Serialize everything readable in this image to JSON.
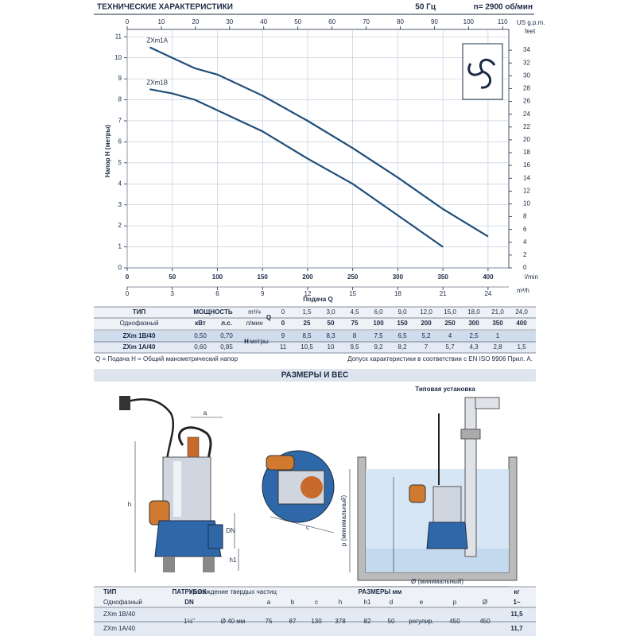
{
  "header": {
    "title": "ТЕХНИЧЕСКИЕ ХАРАКТЕРИСТИКИ",
    "freq": "50 Гц",
    "speed": "n= 2900 об/мин"
  },
  "chart_data": {
    "type": "line",
    "y_label": "Напор H (метры)",
    "x_label": "Подача Q",
    "x_unit": "l/min",
    "x2_unit": "US g.p.m.",
    "x3_unit": "m³/h",
    "y2_unit": "feet",
    "x": [
      25,
      50,
      75,
      100,
      150,
      200,
      250,
      300,
      350,
      400
    ],
    "series": [
      {
        "name": "ZXm1A",
        "color": "#1f4e79",
        "values": [
          10.5,
          10,
          9.5,
          9.2,
          8.2,
          7,
          5.7,
          4.3,
          2.8,
          1.5
        ]
      },
      {
        "name": "ZXm1B",
        "color": "#1f4e79",
        "values": [
          8.5,
          8.3,
          8,
          7.5,
          6.5,
          5.2,
          4,
          2.5,
          1,
          null
        ]
      }
    ],
    "xlim": [
      0,
      423
    ],
    "xticks": [
      0,
      50,
      100,
      150,
      200,
      250,
      300,
      350,
      400
    ],
    "x2lim": [
      0,
      111.8
    ],
    "x2ticks": [
      0,
      10,
      20,
      30,
      40,
      50,
      60,
      70,
      80,
      90,
      100,
      110
    ],
    "x3lim": [
      0,
      25.38
    ],
    "x3ticks": [
      0,
      3,
      6,
      9,
      12,
      15,
      18,
      21,
      24
    ],
    "ylim": [
      0,
      11.35
    ],
    "yticks": [
      0,
      1,
      2,
      3,
      4,
      5,
      6,
      7,
      8,
      9,
      10,
      11
    ],
    "y2lim": [
      0,
      37.24
    ],
    "y2ticks": [
      0,
      2,
      4,
      6,
      8,
      10,
      12,
      14,
      16,
      18,
      20,
      22,
      24,
      26,
      28,
      30,
      32,
      34
    ],
    "grid": true
  },
  "perf_table": {
    "type_header": "ТИП",
    "power_header": "МОЩНОСТЬ",
    "phase": "Однофазный",
    "kw": "кВт",
    "hp": "л.с.",
    "q_label": "Q",
    "h_label": "H",
    "h_unit": "метры",
    "q_units": [
      "m³/ч",
      "л/мин"
    ],
    "q_m3h": [
      "0",
      "1,5",
      "3,0",
      "4,5",
      "6,0",
      "9,0",
      "12,0",
      "15,0",
      "18,0",
      "21,0",
      "24,0"
    ],
    "q_lmin": [
      "0",
      "25",
      "50",
      "75",
      "100",
      "150",
      "200",
      "250",
      "300",
      "350",
      "400"
    ],
    "rows": [
      {
        "model": "ZXm 1B/40",
        "kw": "0,50",
        "hp": "0,70",
        "h": [
          "9",
          "8,5",
          "8,3",
          "8",
          "7,5",
          "6,5",
          "5,2",
          "4",
          "2,5",
          "1"
        ]
      },
      {
        "model": "ZXm 1A/40",
        "kw": "0,60",
        "hp": "0,85",
        "h": [
          "11",
          "10,5",
          "10",
          "9,5",
          "9,2",
          "8,2",
          "7",
          "5,7",
          "4,3",
          "2,8",
          "1,5"
        ]
      }
    ]
  },
  "notes": [
    "Q = Подача  H = Общий манометрический напор",
    "Допуск характеристики в соответствии с EN ISO 9906 Прил. А."
  ],
  "dimensions": {
    "section_title": "РАЗМЕРЫ И ВЕС",
    "install_label": "Типовая установка",
    "labels": [
      "h",
      "a",
      "DN",
      "h1",
      "c",
      "p (минимальный)",
      "Ø (минимальный)"
    ]
  },
  "dim_table": {
    "type_header": "ТИП",
    "inlet_header": "ПАТРУБОК",
    "solids_header": "прохождение твердых частиц",
    "dims_header": "РАЗМЕРЫ мм",
    "kg_header": "кг",
    "phase": "Однофазный",
    "dn": "DN",
    "phase_kg": "1~",
    "dim_cols": [
      "a",
      "b",
      "c",
      "h",
      "h1",
      "d",
      "e",
      "p",
      "Ø"
    ],
    "inlet": "1½\"",
    "solids": "Ø 40 мм",
    "dims": [
      "75",
      "87",
      "130",
      "378",
      "82",
      "50",
      "регулир.",
      "450",
      "450"
    ],
    "rows": [
      {
        "model": "ZXm 1B/40",
        "kg": "11,5"
      },
      {
        "model": "ZXm 1A/40",
        "kg": "11,7"
      }
    ]
  }
}
